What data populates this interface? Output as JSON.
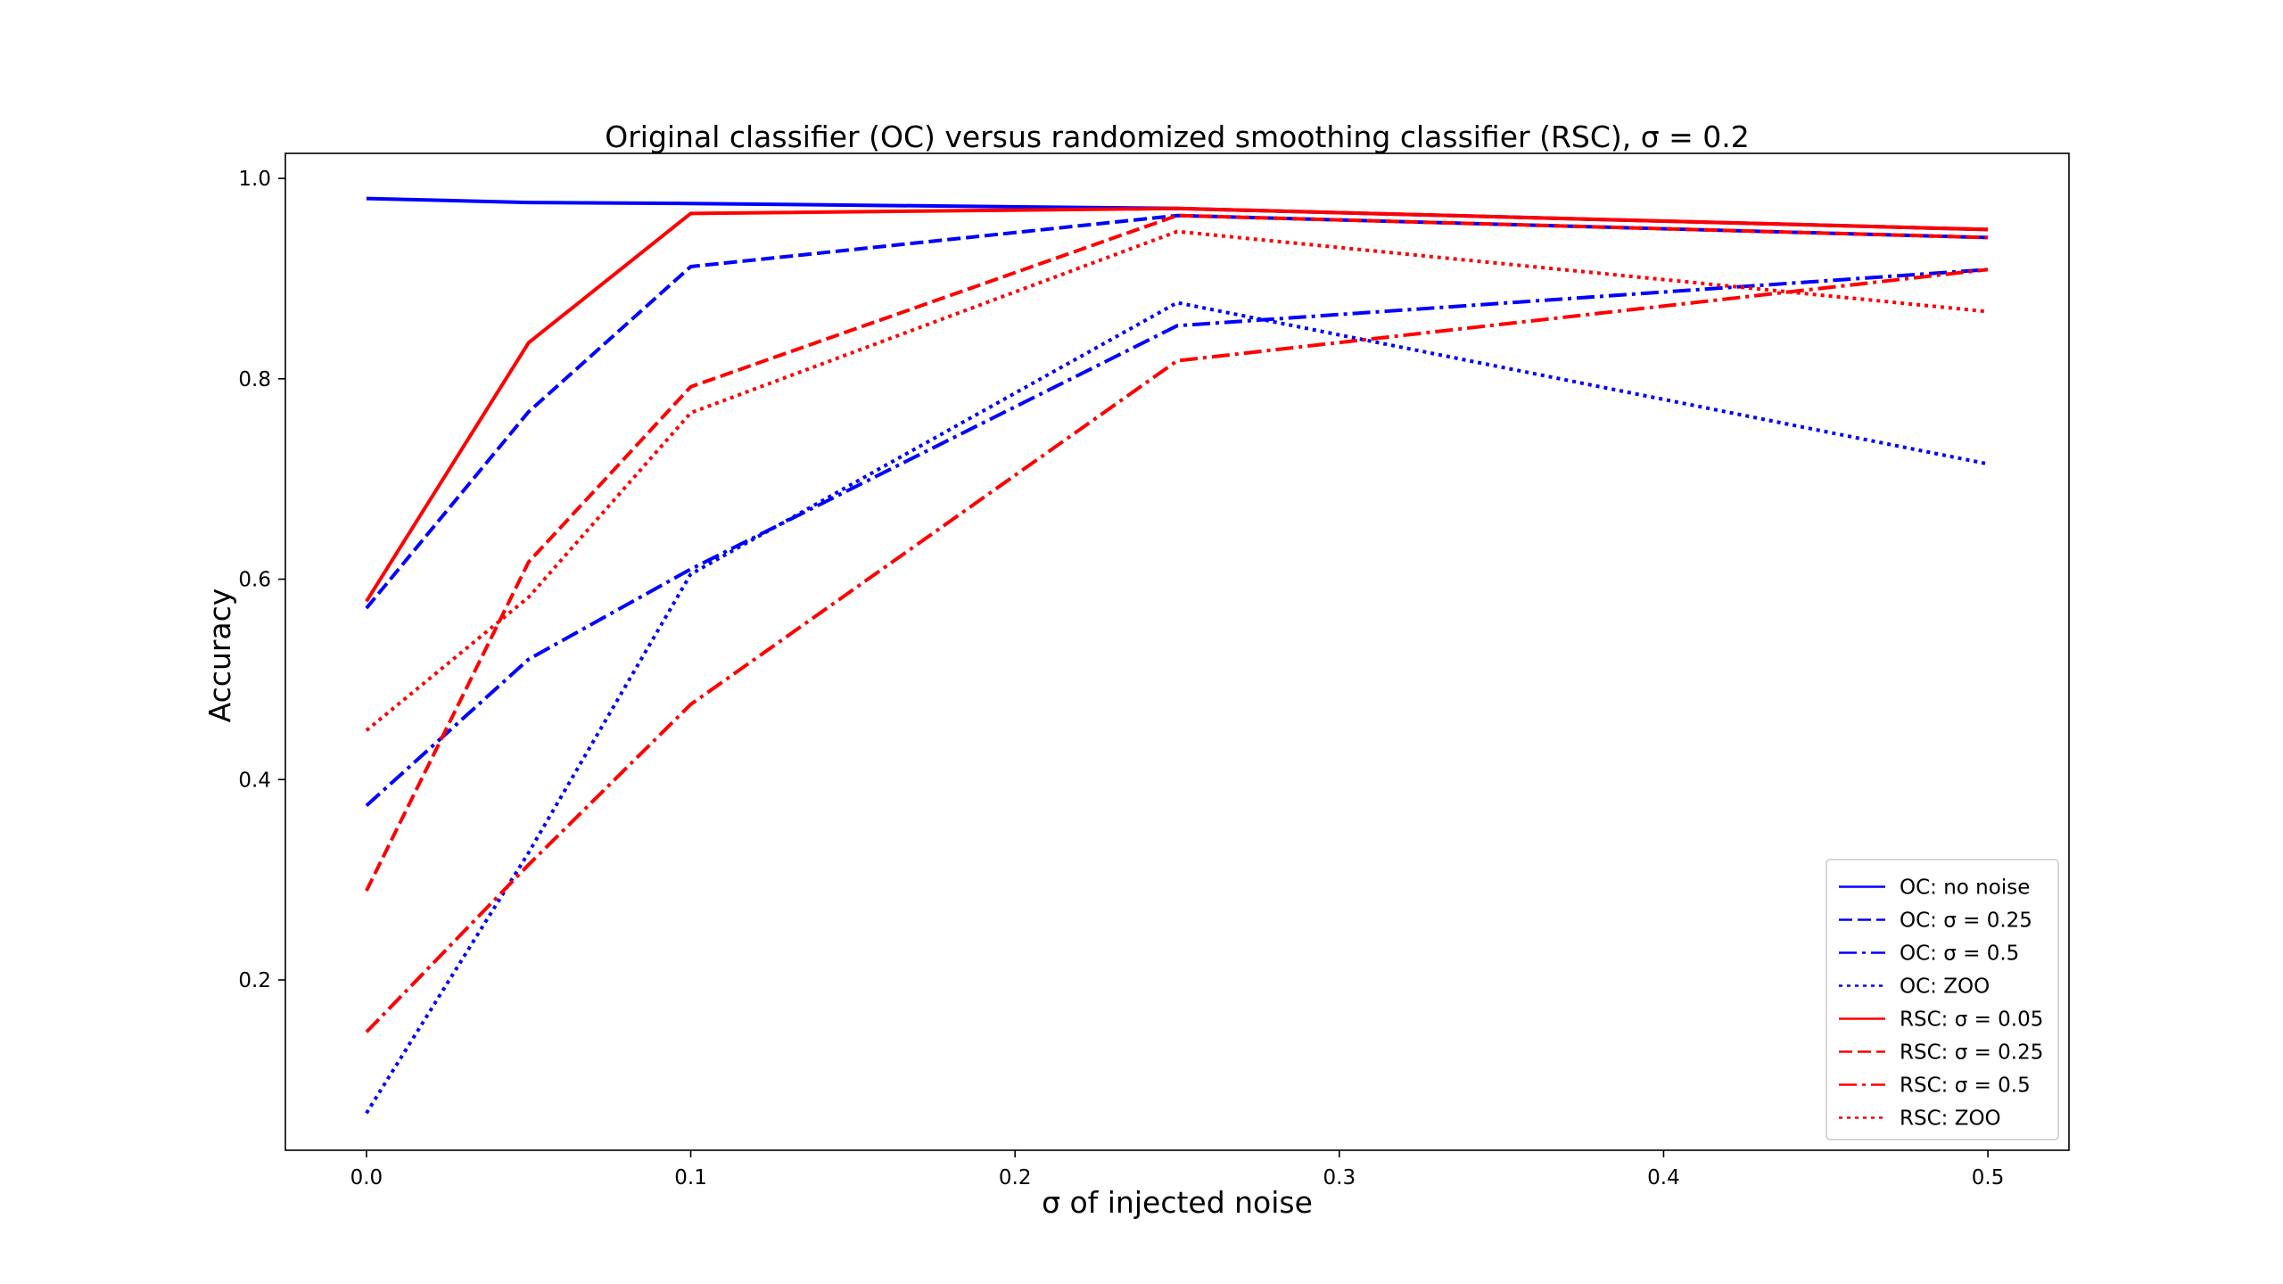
{
  "chart_data": {
    "type": "line",
    "title": "Original classifier (OC) versus randomized smoothing classifier (RSC), σ = 0.2",
    "xlabel": "σ of injected noise",
    "ylabel": "Accuracy",
    "xlim": [
      -0.025,
      0.525
    ],
    "ylim": [
      0.03,
      1.025
    ],
    "xticks": [
      0.0,
      0.1,
      0.2,
      0.3,
      0.4,
      0.5
    ],
    "xtick_labels": [
      "0.0",
      "0.1",
      "0.2",
      "0.3",
      "0.4",
      "0.5"
    ],
    "yticks": [
      0.2,
      0.4,
      0.6,
      0.8,
      1.0
    ],
    "ytick_labels": [
      "0.2",
      "0.4",
      "0.6",
      "0.8",
      "1.0"
    ],
    "grid": false,
    "legend_position": "lower-right",
    "x": [
      0.0,
      0.05,
      0.1,
      0.25,
      0.5
    ],
    "series": [
      {
        "name": "OC: no noise",
        "color": "#0000ff",
        "dash": "solid",
        "values": [
          0.98,
          0.976,
          0.975,
          0.97,
          0.949
        ]
      },
      {
        "name": "OC: σ = 0.25",
        "color": "#0000ff",
        "dash": "dashed",
        "values": [
          0.571,
          0.767,
          0.912,
          0.963,
          0.941
        ]
      },
      {
        "name": "OC: σ = 0.5",
        "color": "#0000ff",
        "dash": "dashdot",
        "values": [
          0.374,
          0.52,
          0.61,
          0.853,
          0.909
        ]
      },
      {
        "name": "OC: ZOO",
        "color": "#0000ff",
        "dash": "dotted",
        "values": [
          0.067,
          0.327,
          0.605,
          0.876,
          0.715
        ]
      },
      {
        "name": "RSC: σ = 0.05",
        "color": "#ff0000",
        "dash": "solid",
        "values": [
          0.578,
          0.836,
          0.965,
          0.97,
          0.949
        ]
      },
      {
        "name": "RSC: σ = 0.25",
        "color": "#ff0000",
        "dash": "dashed",
        "values": [
          0.289,
          0.617,
          0.792,
          0.963,
          0.941
        ]
      },
      {
        "name": "RSC: σ = 0.5",
        "color": "#ff0000",
        "dash": "dashdot",
        "values": [
          0.148,
          0.315,
          0.475,
          0.818,
          0.909
        ]
      },
      {
        "name": "RSC: ZOO",
        "color": "#ff0000",
        "dash": "dotted",
        "values": [
          0.449,
          0.582,
          0.766,
          0.947,
          0.867
        ]
      }
    ]
  }
}
